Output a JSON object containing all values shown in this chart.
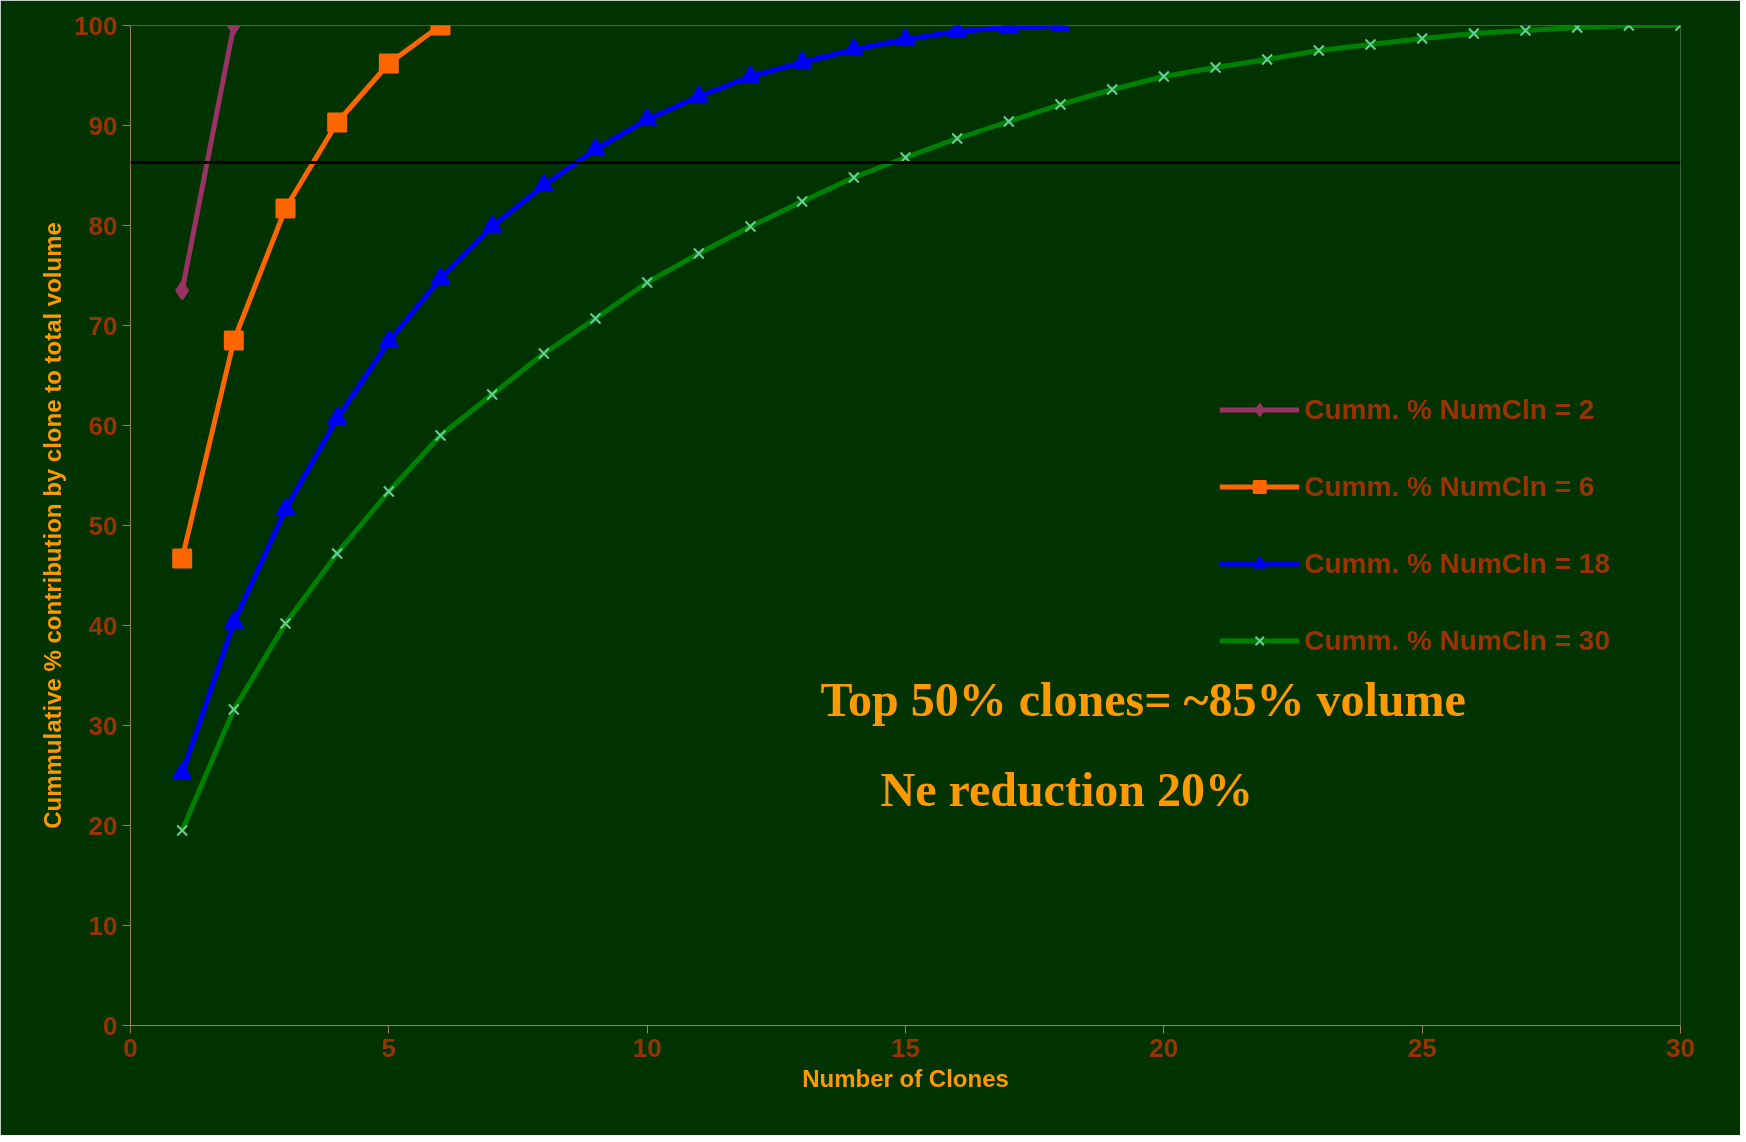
{
  "chart_data": {
    "type": "line",
    "xlabel": "Number of Clones",
    "ylabel": "Cummulative % contribution by clone to total volume",
    "xlim": [
      0,
      30
    ],
    "xticks": [
      0,
      5,
      10,
      15,
      20,
      25,
      30
    ],
    "ylim": [
      0,
      100
    ],
    "yticks": [
      0,
      10,
      20,
      30,
      40,
      50,
      60,
      70,
      80,
      90,
      100
    ],
    "grid": false,
    "legend": "right",
    "line_style": "solid",
    "annotations": [
      "Top 50% clones= ~85% volume",
      "Ne reduction 20%"
    ],
    "ref_lines": [
      {
        "axis": "y",
        "value": 86.3,
        "label": null,
        "color": "#000000"
      }
    ],
    "series": [
      {
        "name": "Cumm. % NumCln = 2",
        "color": "#993366",
        "marker": "diamond",
        "x": [
          1,
          2
        ],
        "values": [
          73.5,
          100
        ]
      },
      {
        "name": "Cumm. % NumCln = 6",
        "color": "#ff6600",
        "marker": "square",
        "x": [
          1,
          2,
          3,
          4,
          5,
          6
        ],
        "values": [
          46.7,
          68.5,
          81.7,
          90.3,
          96.2,
          100
        ]
      },
      {
        "name": "Cumm. % NumCln = 18",
        "color": "#0000ff",
        "marker": "triangle",
        "x": [
          1,
          2,
          3,
          4,
          5,
          6,
          7,
          8,
          9,
          10,
          11,
          12,
          13,
          14,
          15,
          16,
          17,
          18
        ],
        "values": [
          25.2,
          40.3,
          51.6,
          60.7,
          68.4,
          74.7,
          79.9,
          84.0,
          87.6,
          90.6,
          92.9,
          94.9,
          96.3,
          97.6,
          98.6,
          99.4,
          99.8,
          100
        ]
      },
      {
        "name": "Cumm. % NumCln = 30",
        "color": "#008000",
        "marker": "cross",
        "x": [
          1,
          2,
          3,
          4,
          5,
          6,
          7,
          8,
          9,
          10,
          11,
          12,
          13,
          14,
          15,
          16,
          17,
          18,
          19,
          20,
          21,
          22,
          23,
          24,
          25,
          26,
          27,
          28,
          29,
          30
        ],
        "values": [
          19.5,
          31.6,
          40.2,
          47.2,
          53.4,
          59.0,
          63.1,
          67.2,
          70.7,
          74.3,
          77.2,
          79.9,
          82.4,
          84.8,
          86.8,
          88.7,
          90.4,
          92.1,
          93.6,
          94.9,
          95.8,
          96.6,
          97.5,
          98.1,
          98.7,
          99.2,
          99.5,
          99.8,
          100,
          100
        ]
      }
    ]
  }
}
